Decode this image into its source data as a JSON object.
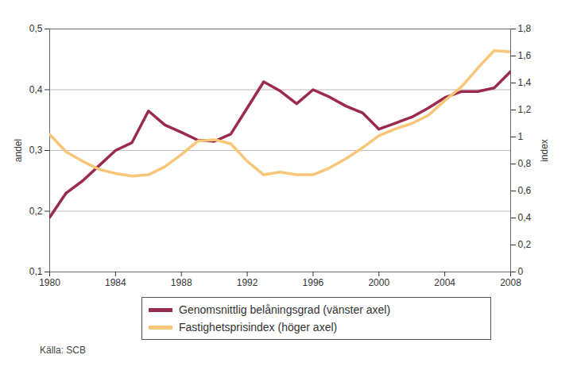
{
  "chart_data": {
    "type": "line",
    "caption": "Källa: SCB",
    "y_label": "andel",
    "y2_label": "index",
    "x": [
      1980,
      1981,
      1982,
      1983,
      1984,
      1985,
      1986,
      1987,
      1988,
      1989,
      1990,
      1991,
      1992,
      1993,
      1994,
      1995,
      1996,
      1997,
      1998,
      1999,
      2000,
      2001,
      2002,
      2003,
      2004,
      2005,
      2006,
      2007,
      2008
    ],
    "series": [
      {
        "name": "Genomsnittlig belåningsgrad (vänster axel)",
        "color": "#9b2a4f",
        "values": [
          0.19,
          0.23,
          0.25,
          0.275,
          0.3,
          0.313,
          0.365,
          0.342,
          0.33,
          0.317,
          0.315,
          0.327,
          0.37,
          0.413,
          0.398,
          0.377,
          0.4,
          0.388,
          0.373,
          0.362,
          0.335,
          0.345,
          0.355,
          0.37,
          0.387,
          0.397,
          0.397,
          0.403,
          0.43
        ]
      },
      {
        "name": "Fastighetsprisindex (höger axel)",
        "color": "#f9c678",
        "axis": "y2",
        "values": [
          1.02,
          0.89,
          0.82,
          0.76,
          0.73,
          0.71,
          0.72,
          0.78,
          0.87,
          0.97,
          0.98,
          0.95,
          0.82,
          0.72,
          0.74,
          0.72,
          0.72,
          0.77,
          0.84,
          0.92,
          1.01,
          1.06,
          1.1,
          1.16,
          1.27,
          1.37,
          1.51,
          1.64,
          1.63
        ]
      }
    ],
    "xlim": [
      1980,
      2008
    ],
    "xticks": [
      1980,
      1984,
      1988,
      1992,
      1996,
      2000,
      2004,
      2008
    ],
    "ylim": [
      0.1,
      0.5
    ],
    "yticks": [
      {
        "value": 0.1,
        "label": "0,1"
      },
      {
        "value": 0.2,
        "label": "0,2"
      },
      {
        "value": 0.3,
        "label": "0,3"
      },
      {
        "value": 0.4,
        "label": "0,4"
      },
      {
        "value": 0.5,
        "label": "0,5"
      }
    ],
    "y2lim": [
      0,
      1.8
    ],
    "y2ticks": [
      0,
      {
        "value": 0.2,
        "label": "0,2"
      },
      {
        "value": 0.4,
        "label": "0,4"
      },
      {
        "value": 0.6,
        "label": "0,6"
      },
      {
        "value": 0.8,
        "label": "0,8"
      },
      1,
      {
        "value": 1.2,
        "label": "1,2"
      },
      {
        "value": 1.4,
        "label": "1,4"
      },
      {
        "value": 1.6,
        "label": "1,6"
      },
      {
        "value": 1.8,
        "label": "1,8"
      }
    ],
    "grid": true,
    "legend": "bottom"
  }
}
